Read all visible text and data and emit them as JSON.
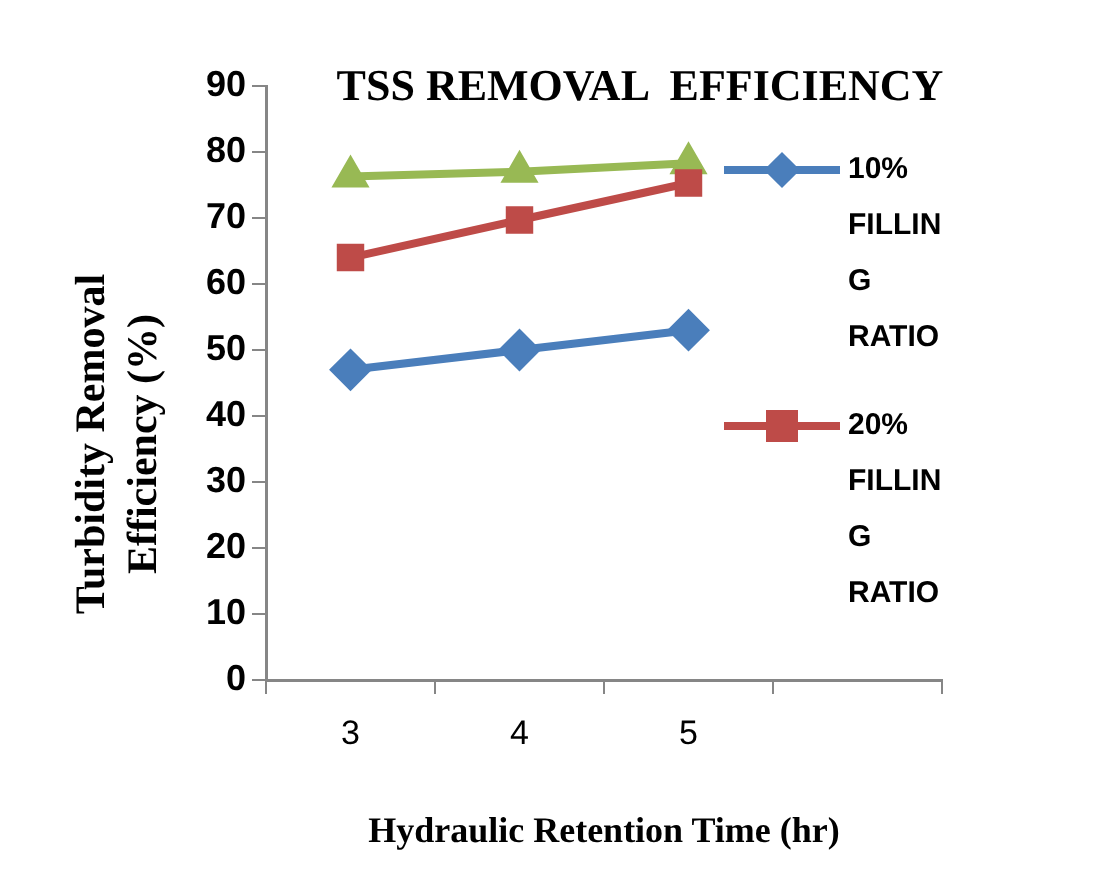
{
  "chart_data": {
    "type": "line",
    "title": "TSS REMOVAL  EFFICIENCY",
    "xlabel": "Hydraulic Retention Time (hr)",
    "ylabel": "Turbidity Removal Efficiency (%)",
    "categories": [
      "3",
      "4",
      "5",
      null
    ],
    "series": [
      {
        "name": "10% FILLING RATIO",
        "color": "#4a7ebb",
        "marker": "diamond",
        "values": [
          47,
          50,
          53,
          null
        ]
      },
      {
        "name": "20% FILLING RATIO",
        "color": "#be4b48",
        "marker": "square",
        "values": [
          64,
          69.7,
          75.3,
          null
        ]
      },
      {
        "color": "#98b954",
        "marker": "triangle",
        "values": [
          76.3,
          77,
          78.3,
          null
        ]
      }
    ],
    "ylim": [
      0,
      90
    ],
    "yticks": [
      0,
      10,
      20,
      30,
      40,
      50,
      60,
      70,
      80,
      90
    ],
    "grid": false,
    "legend": "right",
    "line_style": "solid"
  }
}
